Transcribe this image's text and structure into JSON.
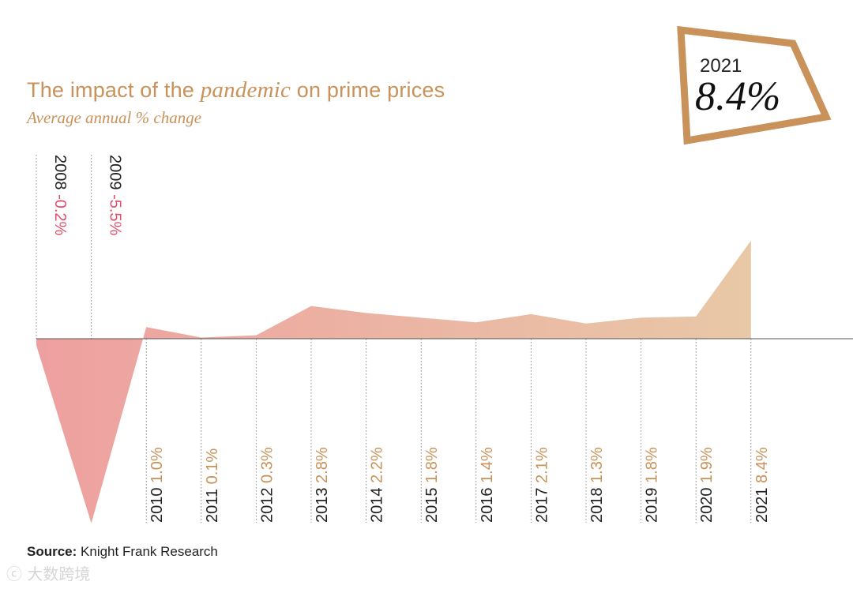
{
  "title": {
    "pre": "The impact of the",
    "italic": "pandemic",
    "post": "on prime prices"
  },
  "subtitle": "Average annual % change",
  "source": {
    "label": "Source:",
    "text": "Knight Frank Research"
  },
  "watermark": "大数跨境",
  "callout": {
    "year": "2021",
    "value": "8.4%"
  },
  "colors": {
    "negative": "#f0909a",
    "start": "#eea0a0",
    "end": "#e8c8a6",
    "label_positive": "#c8925a",
    "label_negative": "#e0506a",
    "callout_border": "#c8925a"
  },
  "chart_data": {
    "type": "area",
    "title": "The impact of the pandemic on prime prices",
    "subtitle": "Average annual % change",
    "x": [
      "2008",
      "2009",
      "2010",
      "2011",
      "2012",
      "2013",
      "2014",
      "2015",
      "2016",
      "2017",
      "2018",
      "2019",
      "2020",
      "2021"
    ],
    "series": [
      {
        "values": [
          -0.2,
          -5.5,
          1.0,
          0.1,
          0.3,
          2.8,
          2.2,
          1.8,
          1.4,
          2.1,
          1.3,
          1.8,
          1.9,
          8.4
        ],
        "labels": [
          "-0.2%",
          "-5.5%",
          "1.0%",
          "0.1%",
          "0.3%",
          "2.8%",
          "2.2%",
          "1.8%",
          "1.4%",
          "2.1%",
          "1.3%",
          "1.8%",
          "1.9%",
          "8.4%"
        ]
      }
    ],
    "grid": false,
    "legend": "none"
  }
}
